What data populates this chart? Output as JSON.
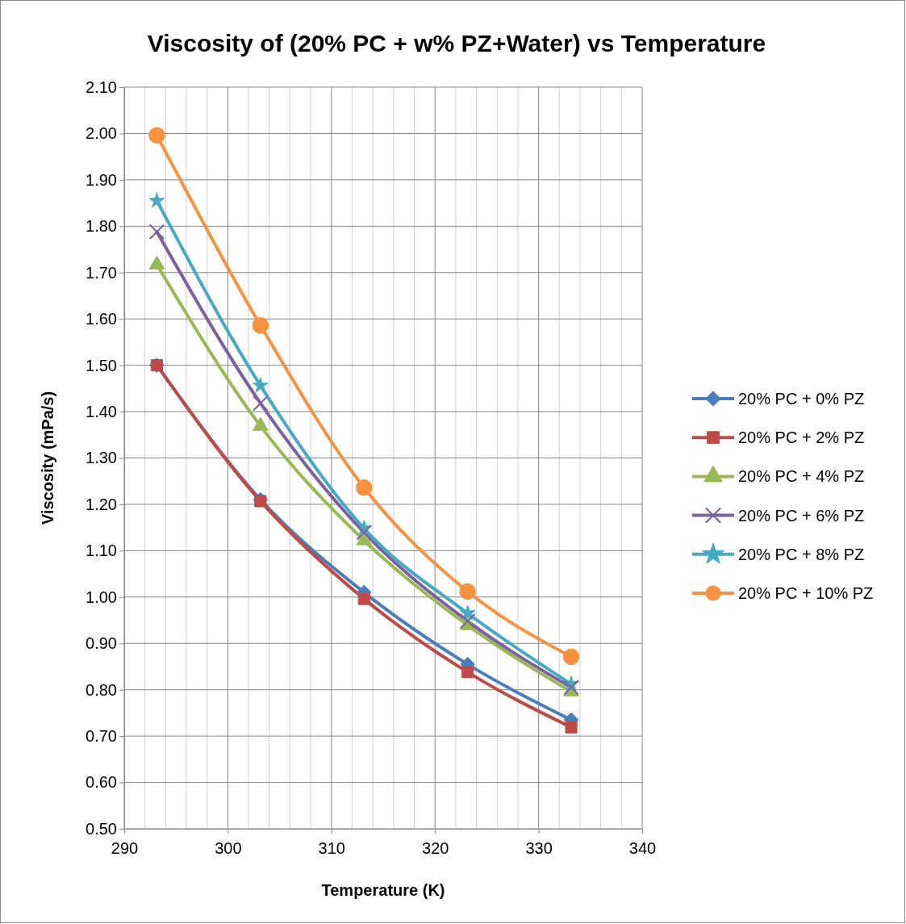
{
  "chart_data": {
    "type": "line",
    "title": "Viscosity of (20% PC + w% PZ+Water) vs Temperature",
    "xlabel": "Temperature (K)",
    "ylabel": "Viscosity (mPa/s)",
    "x": [
      293.15,
      303.15,
      313.15,
      323.15,
      333.15
    ],
    "xlim": [
      290,
      340
    ],
    "xticks": [
      290,
      {
        "value": 292,
        "label": null
      },
      {
        "value": 294,
        "label": null
      },
      {
        "value": 296,
        "label": null
      },
      {
        "value": 298,
        "label": null
      },
      300,
      {
        "value": 302,
        "label": null
      },
      {
        "value": 304,
        "label": null
      },
      {
        "value": 306,
        "label": null
      },
      {
        "value": 308,
        "label": null
      },
      310,
      {
        "value": 312,
        "label": null
      },
      {
        "value": 314,
        "label": null
      },
      {
        "value": 316,
        "label": null
      },
      {
        "value": 318,
        "label": null
      },
      320,
      {
        "value": 322,
        "label": null
      },
      {
        "value": 324,
        "label": null
      },
      {
        "value": 326,
        "label": null
      },
      {
        "value": 328,
        "label": null
      },
      330,
      {
        "value": 332,
        "label": null
      },
      {
        "value": 334,
        "label": null
      },
      {
        "value": 336,
        "label": null
      },
      {
        "value": 338,
        "label": null
      },
      340
    ],
    "ylim": [
      0.5,
      2.1
    ],
    "yticks": [
      {
        "value": 0.5,
        "label": "0.50"
      },
      {
        "value": 0.6,
        "label": "0.60"
      },
      {
        "value": 0.7,
        "label": "0.70"
      },
      {
        "value": 0.8,
        "label": "0.80"
      },
      {
        "value": 0.9,
        "label": "0.90"
      },
      {
        "value": 1.0,
        "label": "1.00"
      },
      {
        "value": 1.1,
        "label": "1.10"
      },
      {
        "value": 1.2,
        "label": "1.20"
      },
      {
        "value": 1.3,
        "label": "1.30"
      },
      {
        "value": 1.4,
        "label": "1.40"
      },
      {
        "value": 1.5,
        "label": "1.50"
      },
      {
        "value": 1.6,
        "label": "1.60"
      },
      {
        "value": 1.7,
        "label": "1.70"
      },
      {
        "value": 1.8,
        "label": "1.80"
      },
      {
        "value": 1.9,
        "label": "1.90"
      },
      {
        "value": 2.0,
        "label": "2.00"
      },
      {
        "value": 2.1,
        "label": "2.10"
      }
    ],
    "grid": true,
    "legend": "right",
    "line_style": "solid",
    "series": [
      {
        "name": "20% PC + 0% PZ",
        "color": "#4a7ebb",
        "marker": "diamond",
        "values": [
          1.5,
          1.21,
          1.01,
          0.855,
          0.735
        ]
      },
      {
        "name": "20% PC + 2% PZ",
        "color": "#be4b48",
        "marker": "square",
        "values": [
          1.5,
          1.207,
          0.996,
          0.838,
          0.719
        ]
      },
      {
        "name": "20% PC + 4% PZ",
        "color": "#98b954",
        "marker": "triangle",
        "values": [
          1.717,
          1.369,
          1.122,
          0.939,
          0.796
        ]
      },
      {
        "name": "20% PC + 6% PZ",
        "color": "#7d60a0",
        "marker": "cross",
        "values": [
          1.788,
          1.418,
          1.139,
          0.948,
          0.805
        ]
      },
      {
        "name": "20% PC + 8% PZ",
        "color": "#46aac5",
        "marker": "star",
        "values": [
          1.855,
          1.456,
          1.148,
          0.965,
          0.812
        ]
      },
      {
        "name": "20% PC + 10% PZ",
        "color": "#f69240",
        "marker": "circle",
        "values": [
          1.996,
          1.586,
          1.236,
          1.012,
          0.871
        ]
      }
    ]
  }
}
